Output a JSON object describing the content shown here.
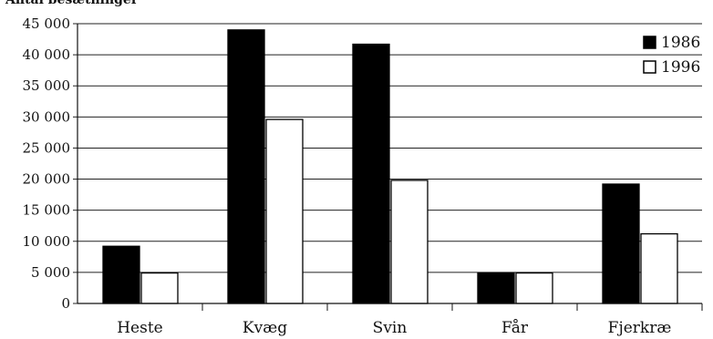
{
  "chart_data": {
    "type": "bar",
    "ylabel": "Antal besætninger",
    "categories": [
      "Heste",
      "Kvæg",
      "Svin",
      "Får",
      "Fjerkræ"
    ],
    "series": [
      {
        "name": "1986",
        "values": [
          9200,
          44000,
          41700,
          4900,
          19200
        ],
        "color": "#000000"
      },
      {
        "name": "1996",
        "values": [
          4900,
          29600,
          19800,
          4900,
          11200
        ],
        "color": "#ffffff"
      }
    ],
    "ylim": [
      0,
      45000
    ],
    "y_ticks": [
      {
        "value": 0,
        "label": "0"
      },
      {
        "value": 5000,
        "label": "5 000"
      },
      {
        "value": 10000,
        "label": "10 000"
      },
      {
        "value": 15000,
        "label": "15 000"
      },
      {
        "value": 20000,
        "label": "20 000"
      },
      {
        "value": 25000,
        "label": "25 000"
      },
      {
        "value": 30000,
        "label": "30 000"
      },
      {
        "value": 35000,
        "label": "35 000"
      },
      {
        "value": 40000,
        "label": "40 000"
      },
      {
        "value": 45000,
        "label": "45 000"
      }
    ],
    "grid": true,
    "legend_position": "top-right"
  }
}
